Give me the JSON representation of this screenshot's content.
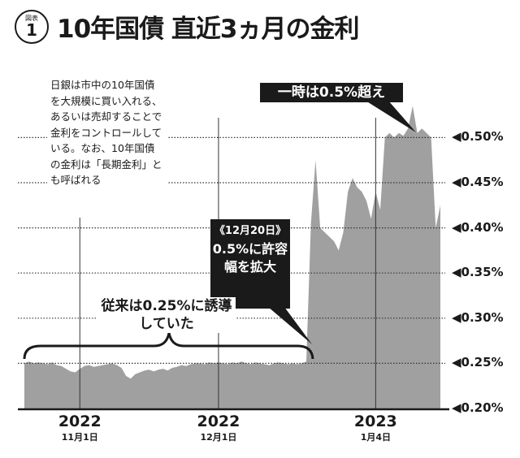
{
  "header": {
    "badge_small": "図表",
    "badge_number": "1",
    "title": "10年国債 直近3ヵ月の金利"
  },
  "note": "日銀は市中の10年国債を大規模に買い入れる、あるいは売却することで金利をコントロールしている。なお、10年国債の金利は「長期金利」とも呼ばれる",
  "callouts": {
    "peak": "一時は0.5%超え",
    "dec20_date": "《12月20日》",
    "dec20_text": "0.5%に許容幅を拡大",
    "previous": "従来は0.25%に誘導していた"
  },
  "chart_data": {
    "type": "area",
    "title": "10年国債 直近3ヵ月の金利",
    "ylim": [
      0.2,
      0.54
    ],
    "yticks": [
      0.2,
      0.25,
      0.3,
      0.35,
      0.4,
      0.45,
      0.5
    ],
    "ytick_labels": [
      "◀0.20%",
      "◀0.25%",
      "◀0.30%",
      "◀0.35%",
      "◀0.40%",
      "◀0.45%",
      "◀0.50%"
    ],
    "xlim": [
      "2022-10-20",
      "2023-01-18"
    ],
    "xticks": [
      {
        "date": "2022-11-01",
        "year": "2022",
        "day": "11月1日"
      },
      {
        "date": "2022-12-01",
        "year": "2022",
        "day": "12月1日"
      },
      {
        "date": "2023-01-04",
        "year": "2023",
        "day": "1月4日"
      }
    ],
    "grid": "horizontal dotted",
    "fill_color": "#a0a0a0",
    "start": "2022-10-20",
    "values": [
      0.25,
      0.252,
      0.25,
      0.251,
      0.25,
      0.249,
      0.251,
      0.248,
      0.247,
      0.244,
      0.241,
      0.24,
      0.244,
      0.247,
      0.248,
      0.246,
      0.247,
      0.248,
      0.249,
      0.25,
      0.248,
      0.245,
      0.236,
      0.233,
      0.238,
      0.24,
      0.242,
      0.243,
      0.241,
      0.243,
      0.244,
      0.242,
      0.245,
      0.246,
      0.248,
      0.247,
      0.249,
      0.25,
      0.25,
      0.249,
      0.251,
      0.25,
      0.251,
      0.25,
      0.249,
      0.251,
      0.25,
      0.252,
      0.25,
      0.249,
      0.251,
      0.25,
      0.249,
      0.248,
      0.25,
      0.251,
      0.25,
      0.249,
      0.25,
      0.249,
      0.25,
      0.252,
      0.405,
      0.475,
      0.4,
      0.395,
      0.39,
      0.385,
      0.375,
      0.395,
      0.44,
      0.455,
      0.445,
      0.44,
      0.43,
      0.41,
      0.44,
      0.42,
      0.5,
      0.505,
      0.5,
      0.505,
      0.502,
      0.51,
      0.535,
      0.505,
      0.51,
      0.505,
      0.5,
      0.4,
      0.425
    ]
  }
}
